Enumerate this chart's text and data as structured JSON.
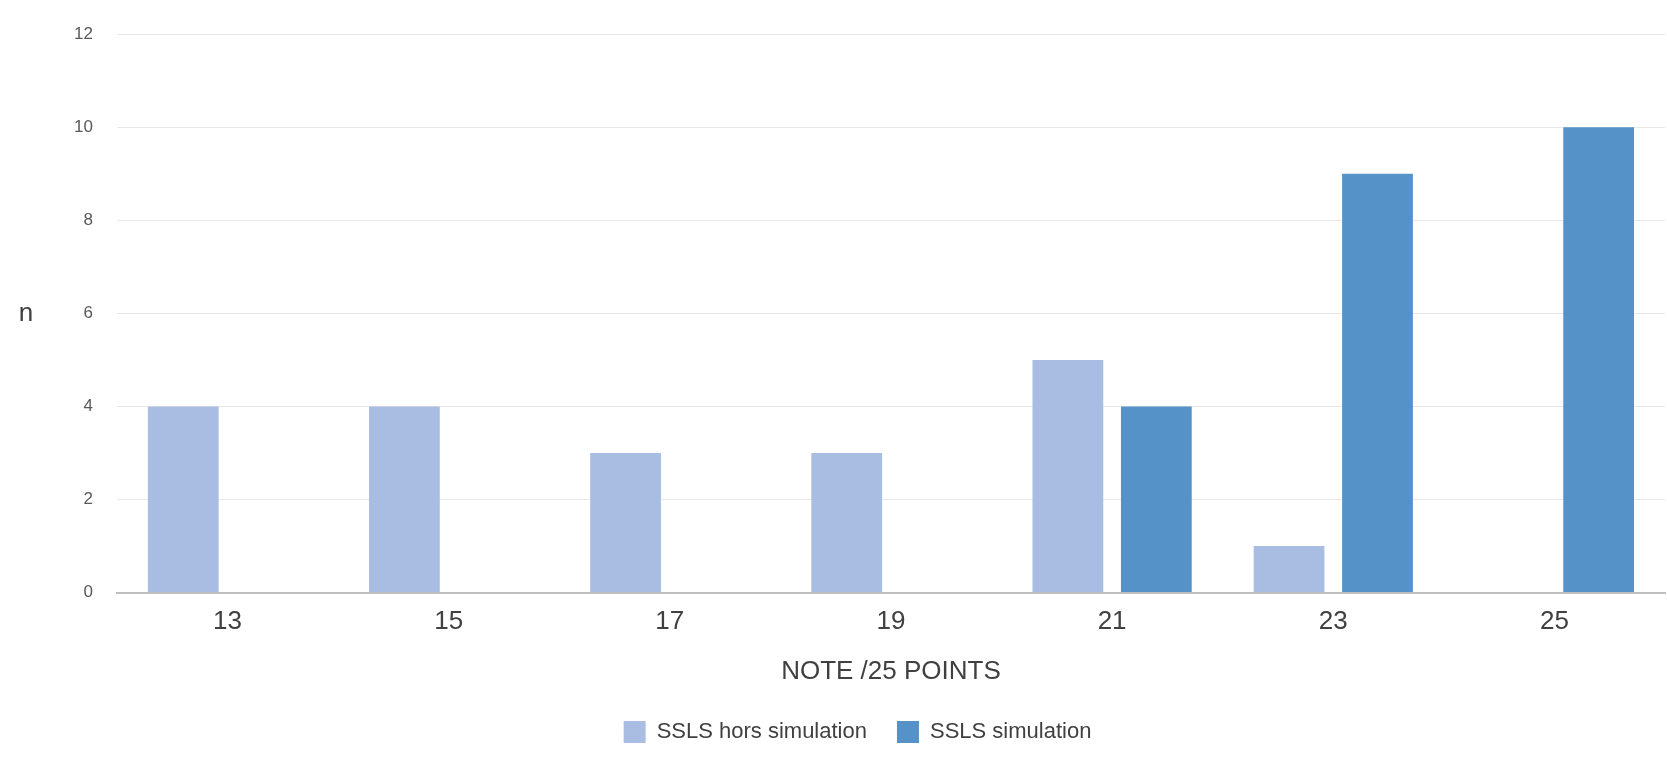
{
  "chart_data": {
    "type": "bar",
    "xlabel": "NOTE /25 POINTS",
    "ylabel": "n",
    "categories": [
      "13",
      "15",
      "17",
      "19",
      "21",
      "23",
      "25"
    ],
    "series": [
      {
        "name": "SSLS hors simulation",
        "color": "#a9bde3",
        "values": [
          4,
          4,
          3,
          3,
          5,
          1,
          0
        ]
      },
      {
        "name": "SSLS simulation",
        "color": "#5592c8",
        "values": [
          0,
          0,
          0,
          0,
          4,
          9,
          10
        ]
      }
    ],
    "ylim": [
      0,
      12
    ],
    "yticks": [
      0,
      2,
      4,
      6,
      8,
      10,
      12
    ],
    "grid": "y",
    "legend": "bottom"
  }
}
